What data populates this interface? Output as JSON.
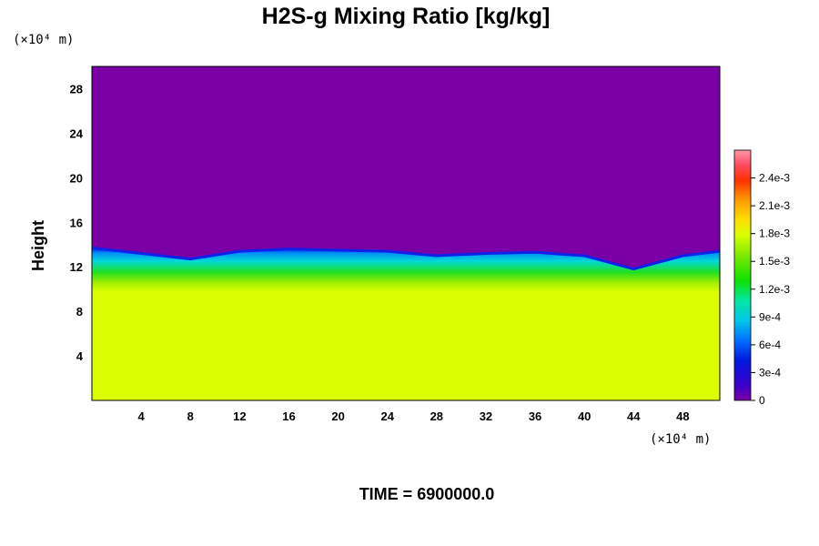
{
  "chart_data": {
    "type": "heatmap",
    "title": "H2S-g Mixing Ratio [kg/kg]",
    "ylabel": "Height",
    "x_unit": "(×10⁴ m)",
    "y_unit": "(×10⁴ m)",
    "time_label": "TIME = 6900000.0",
    "xlim": [
      0,
      51
    ],
    "ylim": [
      0,
      30
    ],
    "x_ticks": [
      4,
      8,
      12,
      16,
      20,
      24,
      28,
      32,
      36,
      40,
      44,
      48
    ],
    "y_ticks": [
      4,
      8,
      12,
      16,
      20,
      24,
      28
    ],
    "colorbar": {
      "min": 0,
      "max": 0.0027,
      "tick_labels": [
        "0",
        "3e-4",
        "6e-4",
        "9e-4",
        "1.2e-3",
        "1.5e-3",
        "1.8e-3",
        "2.1e-3",
        "2.4e-3"
      ],
      "tick_values": [
        0,
        0.0003,
        0.0006,
        0.0009,
        0.0012,
        0.0015,
        0.0018,
        0.0021,
        0.0024
      ]
    },
    "field": {
      "lower_layer_value": 0.0018,
      "lower_layer_top": 9.8,
      "upper_value": 0,
      "mixing_zone": {
        "x": [
          0,
          4,
          8,
          12,
          16,
          20,
          24,
          28,
          32,
          36,
          40,
          44,
          48,
          51
        ],
        "top": [
          13.7,
          13.2,
          12.7,
          13.4,
          13.6,
          13.5,
          13.4,
          13.0,
          13.2,
          13.3,
          13.0,
          11.8,
          13.0,
          13.4
        ]
      }
    }
  }
}
